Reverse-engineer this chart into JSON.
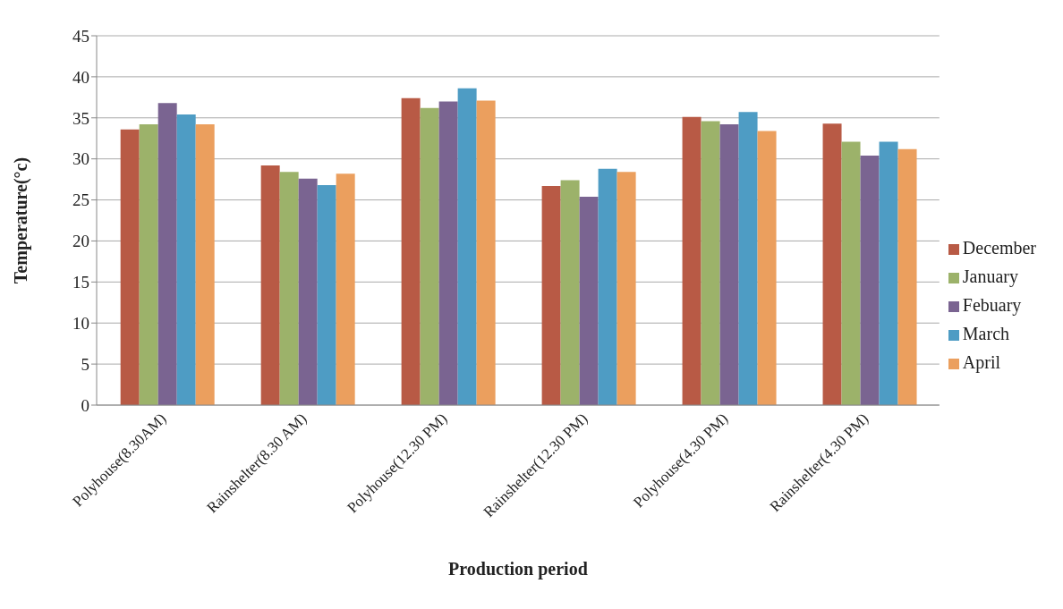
{
  "chart_data": {
    "type": "bar",
    "xlabel": "Production period",
    "ylabel": "Temperature(°c)",
    "categories": [
      "Polyhouse(8.30AM)",
      "Rainshelter(8.30 AM)",
      "Polyhouse(12.30 PM)",
      "Rainshelter(12.30 PM)",
      "Polyhouse(4.30 PM)",
      "Rainshelter(4.30 PM)"
    ],
    "series": [
      {
        "name": "December",
        "color": "#b85a45",
        "values": [
          33.6,
          29.2,
          37.4,
          26.7,
          35.1,
          34.3
        ]
      },
      {
        "name": "January",
        "color": "#9cb26a",
        "values": [
          34.2,
          28.4,
          36.2,
          27.4,
          34.6,
          32.1
        ]
      },
      {
        "name": "Febuary",
        "color": "#7a6491",
        "values": [
          36.8,
          27.6,
          37.0,
          25.4,
          34.2,
          30.4
        ]
      },
      {
        "name": "March",
        "color": "#4e9cc4",
        "values": [
          35.4,
          26.8,
          38.6,
          28.8,
          35.7,
          32.1
        ]
      },
      {
        "name": "April",
        "color": "#eb9f5e",
        "values": [
          34.2,
          28.2,
          37.1,
          28.4,
          33.4,
          31.2
        ]
      }
    ],
    "ylim": [
      0,
      45
    ],
    "yticks": [
      0,
      5,
      10,
      15,
      20,
      25,
      30,
      35,
      40,
      45
    ],
    "grid": "y",
    "legend": "right"
  }
}
